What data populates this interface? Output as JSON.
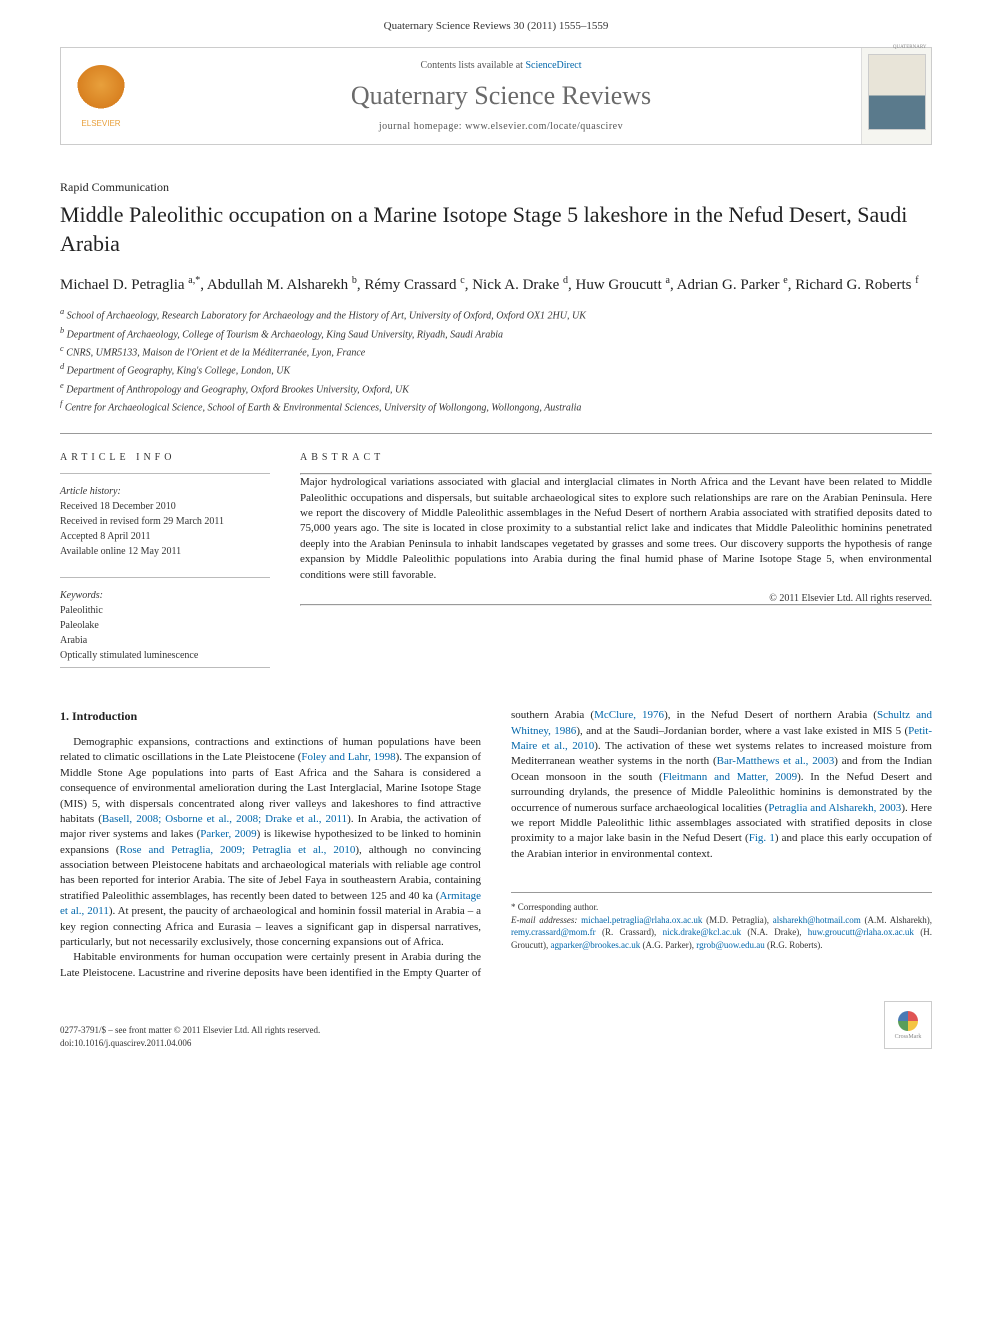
{
  "header": {
    "citation": "Quaternary Science Reviews 30 (2011) 1555–1559"
  },
  "banner": {
    "contents_prefix": "Contents lists available at ",
    "contents_link": "ScienceDirect",
    "journal_name": "Quaternary Science Reviews",
    "homepage_prefix": "journal homepage: ",
    "homepage_url": "www.elsevier.com/locate/quascirev",
    "publisher": "ELSEVIER"
  },
  "article": {
    "type": "Rapid Communication",
    "title": "Middle Paleolithic occupation on a Marine Isotope Stage 5 lakeshore in the Nefud Desert, Saudi Arabia",
    "authors_html": "Michael D. Petraglia <sup>a,*</sup>, Abdullah M. Alsharekh <sup>b</sup>, Rémy Crassard <sup>c</sup>, Nick A. Drake <sup>d</sup>, Huw Groucutt <sup>a</sup>, Adrian G. Parker <sup>e</sup>, Richard G. Roberts <sup>f</sup>",
    "affiliations": [
      "a School of Archaeology, Research Laboratory for Archaeology and the History of Art, University of Oxford, Oxford OX1 2HU, UK",
      "b Department of Archaeology, College of Tourism & Archaeology, King Saud University, Riyadh, Saudi Arabia",
      "c CNRS, UMR5133, Maison de l'Orient et de la Méditerranée, Lyon, France",
      "d Department of Geography, King's College, London, UK",
      "e Department of Anthropology and Geography, Oxford Brookes University, Oxford, UK",
      "f Centre for Archaeological Science, School of Earth & Environmental Sciences, University of Wollongong, Wollongong, Australia"
    ]
  },
  "info": {
    "label": "ARTICLE INFO",
    "history_title": "Article history:",
    "history": [
      "Received 18 December 2010",
      "Received in revised form 29 March 2011",
      "Accepted 8 April 2011",
      "Available online 12 May 2011"
    ],
    "keywords_title": "Keywords:",
    "keywords": [
      "Paleolithic",
      "Paleolake",
      "Arabia",
      "Optically stimulated luminescence"
    ]
  },
  "abstract": {
    "label": "ABSTRACT",
    "text": "Major hydrological variations associated with glacial and interglacial climates in North Africa and the Levant have been related to Middle Paleolithic occupations and dispersals, but suitable archaeological sites to explore such relationships are rare on the Arabian Peninsula. Here we report the discovery of Middle Paleolithic assemblages in the Nefud Desert of northern Arabia associated with stratified deposits dated to 75,000 years ago. The site is located in close proximity to a substantial relict lake and indicates that Middle Paleolithic hominins penetrated deeply into the Arabian Peninsula to inhabit landscapes vegetated by grasses and some trees. Our discovery supports the hypothesis of range expansion by Middle Paleolithic populations into Arabia during the final humid phase of Marine Isotope Stage 5, when environmental conditions were still favorable.",
    "copyright": "© 2011 Elsevier Ltd. All rights reserved."
  },
  "body": {
    "section_title": "1. Introduction",
    "p1_parts": [
      "Demographic expansions, contractions and extinctions of human populations have been related to climatic oscillations in the Late Pleistocene (",
      "Foley and Lahr, 1998",
      "). The expansion of Middle Stone Age populations into parts of East Africa and the Sahara is considered a consequence of environmental amelioration during the Last Interglacial, Marine Isotope Stage (MIS) 5, with dispersals concentrated along river valleys and lakeshores to find attractive habitats (",
      "Basell, 2008; Osborne et al., 2008; Drake et al., 2011",
      "). In Arabia, the activation of major river systems and lakes (",
      "Parker, 2009",
      ") is likewise hypothesized to be linked to hominin expansions (",
      "Rose and Petraglia, 2009; Petraglia et al., 2010",
      "), although no convincing association between Pleistocene habitats and archaeological materials with reliable age control has been reported for interior Arabia. The site of Jebel Faya in southeastern Arabia, containing stratified Paleolithic assemblages, has recently been dated to between 125 and 40 ka (",
      "Armitage et al., 2011",
      "). At present, the paucity of archaeological and hominin fossil material in Arabia – a key region connecting Africa and Eurasia – leaves a significant gap in dispersal narratives, particularly, but not necessarily exclusively, those concerning expansions out of Africa."
    ],
    "p2_parts": [
      "Habitable environments for human occupation were certainly present in Arabia during the Late Pleistocene. Lacustrine and riverine deposits have been identified in the Empty Quarter of southern Arabia (",
      "McClure, 1976",
      "), in the Nefud Desert of northern Arabia (",
      "Schultz and Whitney, 1986",
      "), and at the Saudi–Jordanian border, where a vast lake existed in MIS 5 (",
      "Petit-Maire et al., 2010",
      "). The activation of these wet systems relates to increased moisture from Mediterranean weather systems in the north (",
      "Bar-Matthews et al., 2003",
      ") and from the Indian Ocean monsoon in the south (",
      "Fleitmann and Matter, 2009",
      "). In the Nefud Desert and surrounding drylands, the presence of Middle Paleolithic hominins is demonstrated by the occurrence of numerous surface archaeological localities (",
      "Petraglia and Alsharekh, 2003",
      "). Here we report Middle Paleolithic lithic assemblages associated with stratified deposits in close proximity to a major lake basin in the Nefud Desert (",
      "Fig. 1",
      ") and place this early occupation of the Arabian interior in environmental context."
    ]
  },
  "footer": {
    "corr_label": "* Corresponding author.",
    "email_label": "E-mail addresses:",
    "emails": [
      {
        "addr": "michael.petraglia@rlaha.ox.ac.uk",
        "owner": "(M.D. Petraglia),"
      },
      {
        "addr": "alsharekh@hotmail.com",
        "owner": "(A.M. Alsharekh),"
      },
      {
        "addr": "remy.crassard@mom.fr",
        "owner": "(R. Crassard),"
      },
      {
        "addr": "nick.drake@kcl.ac.uk",
        "owner": "(N.A. Drake),"
      },
      {
        "addr": "huw.groucutt@rlaha.ox.ac.uk",
        "owner": "(H. Groucutt),"
      },
      {
        "addr": "agparker@brookes.ac.uk",
        "owner": "(A.G. Parker),"
      },
      {
        "addr": "rgrob@uow.edu.au",
        "owner": "(R.G. Roberts)."
      }
    ],
    "issn_line": "0277-3791/$ – see front matter © 2011 Elsevier Ltd. All rights reserved.",
    "doi_line": "doi:10.1016/j.quascirev.2011.04.006"
  },
  "colors": {
    "link": "#0066aa",
    "text": "#333333",
    "title_gray": "#6a6a6a",
    "border": "#cccccc",
    "elsevier_orange": "#e8a03c"
  },
  "typography": {
    "body_font": "Georgia, 'Times New Roman', serif",
    "title_size_pt": 22,
    "journal_name_size_pt": 26,
    "body_size_pt": 11,
    "small_size_pt": 10
  }
}
